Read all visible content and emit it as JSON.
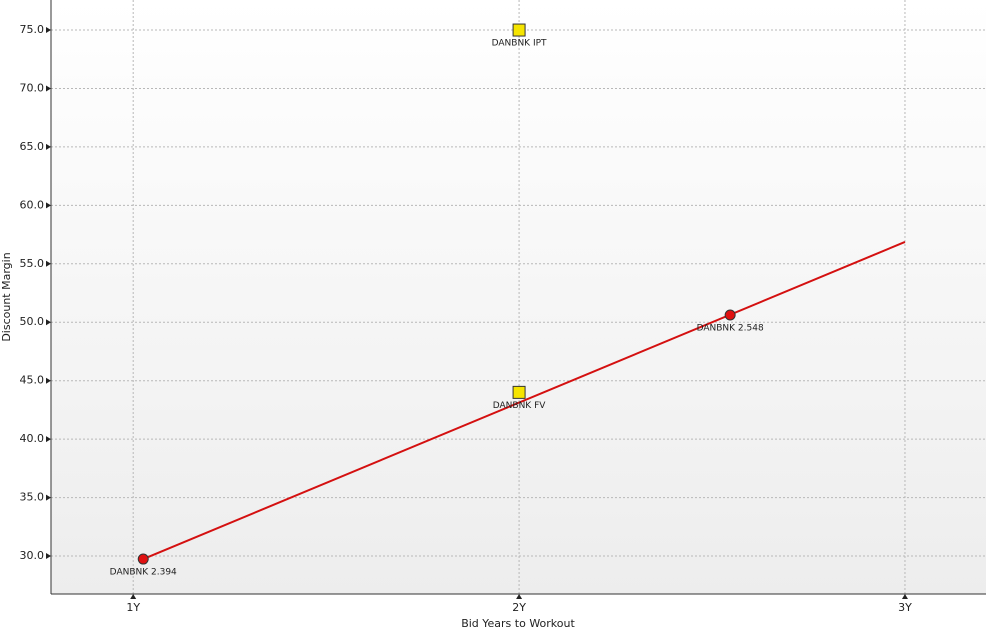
{
  "chart_data": {
    "type": "scatter",
    "x_label": "Bid Years to Workout",
    "y_label": "Discount Margin",
    "xlim": [
      0.787,
      3.21
    ],
    "ylim": [
      26.75,
      77.57
    ],
    "xticks": [
      {
        "value": 1,
        "label": "1Y"
      },
      {
        "value": 2,
        "label": "2Y"
      },
      {
        "value": 3,
        "label": "3Y"
      }
    ],
    "yticks": [
      {
        "value": 30,
        "label": "30.0"
      },
      {
        "value": 35,
        "label": "35.0"
      },
      {
        "value": 40,
        "label": "40.0"
      },
      {
        "value": 45,
        "label": "45.0"
      },
      {
        "value": 50,
        "label": "50.0"
      },
      {
        "value": 55,
        "label": "55.0"
      },
      {
        "value": 60,
        "label": "60.0"
      },
      {
        "value": 65,
        "label": "65.0"
      },
      {
        "value": 70,
        "label": "70.0"
      },
      {
        "value": 75,
        "label": "75.0"
      }
    ],
    "grid": true,
    "series": [
      {
        "marker": "circle",
        "color": "#e01010",
        "x": [
          1.026,
          2.547
        ],
        "values": [
          29.74,
          50.62
        ],
        "labels": [
          "DANBNK 2.394",
          "DANBNK 2.548"
        ]
      },
      {
        "marker": "square",
        "color": "#f5e400",
        "x": [
          2,
          2
        ],
        "values": [
          75,
          44
        ],
        "labels": [
          "DANBNK IPT",
          "DANBNK FV"
        ]
      }
    ],
    "trend_line": {
      "color": "#d41010",
      "x": [
        1.026,
        3.0
      ],
      "values": [
        29.74,
        56.87
      ]
    }
  }
}
